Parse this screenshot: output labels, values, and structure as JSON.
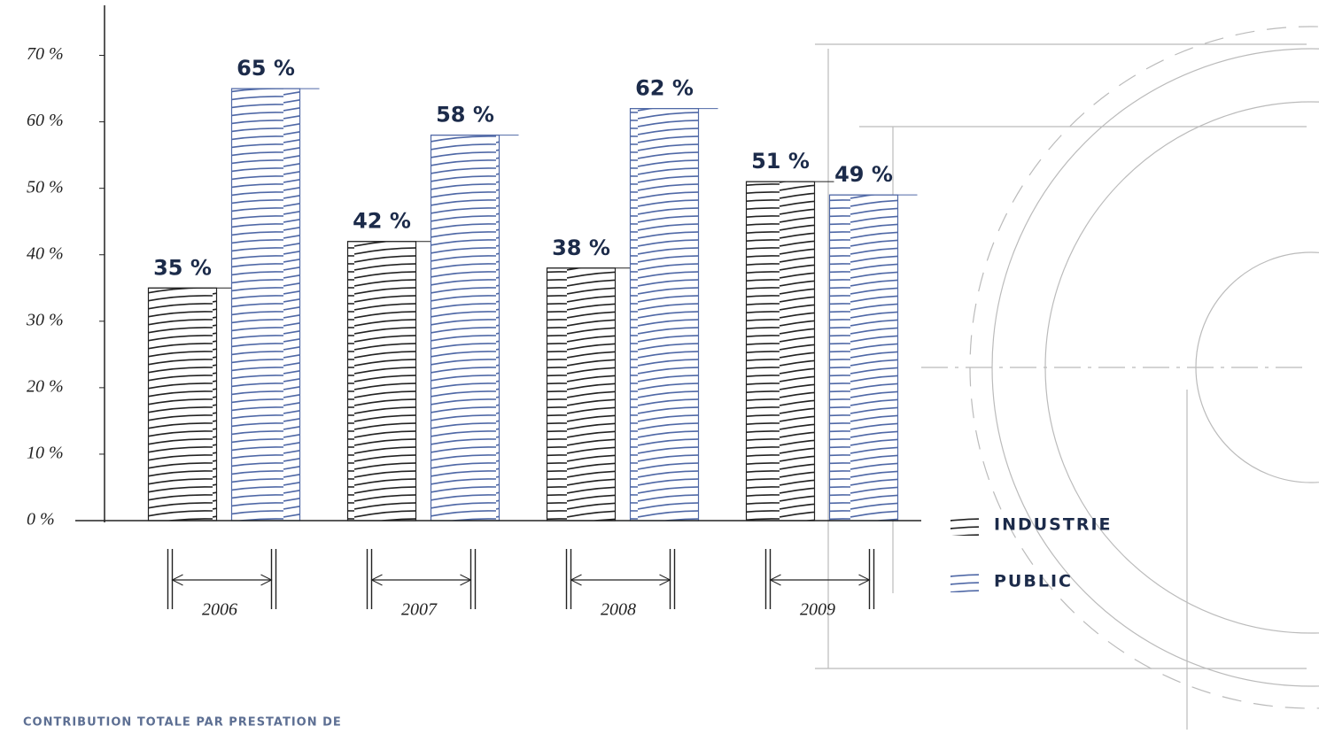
{
  "chart_data": {
    "type": "bar",
    "caption": "CONTRIBUTION TOTALE PAR PRESTATION DE",
    "categories": [
      "2006",
      "2007",
      "2008",
      "2009"
    ],
    "series": [
      {
        "name": "INDUSTRIE",
        "color": "#222222",
        "values": [
          35,
          42,
          38,
          51
        ],
        "value_labels": [
          "35 %",
          "42 %",
          "38 %",
          "51 %"
        ]
      },
      {
        "name": "PUBLIC",
        "color": "#4f68a6",
        "values": [
          65,
          58,
          62,
          49
        ],
        "value_labels": [
          "65 %",
          "58 %",
          "62 %",
          "49 %"
        ]
      }
    ],
    "ylim": [
      0,
      77
    ],
    "yticks": [
      {
        "value": 0,
        "label": "0 %"
      },
      {
        "value": 10,
        "label": "10 %"
      },
      {
        "value": 20,
        "label": "20 %"
      },
      {
        "value": 30,
        "label": "30 %"
      },
      {
        "value": 40,
        "label": "40 %"
      },
      {
        "value": 50,
        "label": "50 %"
      },
      {
        "value": 60,
        "label": "60 %"
      },
      {
        "value": 70,
        "label": "70 %"
      }
    ],
    "legend": "right"
  }
}
